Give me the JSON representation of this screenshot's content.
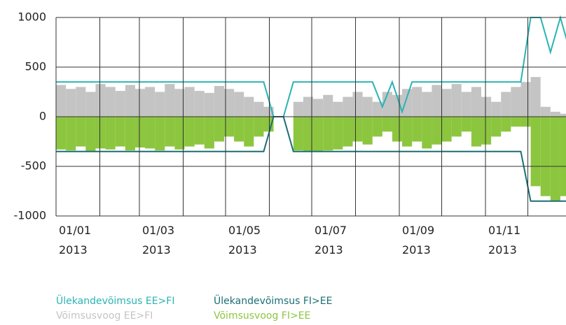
{
  "chart_data": {
    "type": "bar-line",
    "x": [
      "2013-01-01",
      "2013-01-08",
      "2013-01-15",
      "2013-01-22",
      "2013-01-29",
      "2013-02-05",
      "2013-02-12",
      "2013-02-19",
      "2013-02-26",
      "2013-03-05",
      "2013-03-12",
      "2013-03-19",
      "2013-03-26",
      "2013-04-02",
      "2013-04-09",
      "2013-04-16",
      "2013-04-23",
      "2013-04-30",
      "2013-05-07",
      "2013-05-14",
      "2013-05-21",
      "2013-05-28",
      "2013-06-04",
      "2013-06-11",
      "2013-06-18",
      "2013-06-25",
      "2013-07-02",
      "2013-07-09",
      "2013-07-16",
      "2013-07-23",
      "2013-07-30",
      "2013-08-06",
      "2013-08-13",
      "2013-08-20",
      "2013-08-27",
      "2013-09-03",
      "2013-09-10",
      "2013-09-17",
      "2013-09-24",
      "2013-10-01",
      "2013-10-08",
      "2013-10-15",
      "2013-10-22",
      "2013-10-29",
      "2013-11-05",
      "2013-11-12",
      "2013-11-19",
      "2013-11-26",
      "2013-12-03",
      "2013-12-10",
      "2013-12-17",
      "2013-12-24",
      "2013-12-31"
    ],
    "series": [
      {
        "name": "Ülekandevõimsus EE>FI",
        "color": "#2bb3b3",
        "kind": "line",
        "values": [
          350,
          350,
          350,
          350,
          350,
          350,
          350,
          350,
          350,
          350,
          350,
          350,
          350,
          350,
          350,
          350,
          350,
          350,
          350,
          350,
          350,
          350,
          0,
          0,
          350,
          350,
          350,
          350,
          350,
          350,
          350,
          350,
          350,
          100,
          350,
          50,
          350,
          350,
          350,
          350,
          350,
          350,
          350,
          350,
          350,
          350,
          350,
          350,
          1000,
          1000,
          650,
          1000,
          650
        ]
      },
      {
        "name": "Ülekandevõimsus FI>EE",
        "color": "#1b6f74",
        "kind": "line",
        "values": [
          -350,
          -350,
          -350,
          -350,
          -350,
          -350,
          -350,
          -350,
          -350,
          -350,
          -350,
          -350,
          -350,
          -350,
          -350,
          -350,
          -350,
          -350,
          -350,
          -350,
          -350,
          -350,
          0,
          0,
          -350,
          -350,
          -350,
          -350,
          -350,
          -350,
          -350,
          -350,
          -350,
          -350,
          -350,
          -350,
          -350,
          -350,
          -350,
          -350,
          -350,
          -350,
          -350,
          -350,
          -350,
          -350,
          -350,
          -350,
          -850,
          -850,
          -850,
          -850,
          -850
        ]
      },
      {
        "name": "Võimsusvoog EE>FI",
        "color": "#c4c4c4",
        "kind": "bar",
        "values": [
          320,
          280,
          300,
          250,
          330,
          300,
          260,
          320,
          280,
          300,
          250,
          330,
          280,
          300,
          260,
          240,
          310,
          280,
          250,
          200,
          150,
          100,
          0,
          0,
          150,
          200,
          180,
          220,
          150,
          200,
          250,
          200,
          150,
          250,
          220,
          280,
          300,
          250,
          320,
          280,
          330,
          250,
          300,
          200,
          150,
          250,
          300,
          350,
          400,
          100,
          50,
          30,
          40
        ]
      },
      {
        "name": "Võimsusvoog FI>EE",
        "color": "#8cc63f",
        "kind": "bar",
        "values": [
          -330,
          -340,
          -300,
          -350,
          -320,
          -330,
          -300,
          -340,
          -310,
          -320,
          -340,
          -300,
          -330,
          -300,
          -280,
          -320,
          -250,
          -200,
          -250,
          -300,
          -200,
          -150,
          0,
          0,
          -340,
          -350,
          -350,
          -340,
          -330,
          -300,
          -250,
          -280,
          -200,
          -150,
          -250,
          -300,
          -250,
          -320,
          -280,
          -250,
          -200,
          -150,
          -300,
          -280,
          -200,
          -150,
          -100,
          -100,
          -700,
          -800,
          -850,
          -800,
          -750
        ]
      }
    ],
    "xlim": [
      "2013-01-01",
      "2013-12-28"
    ],
    "xticks": [
      {
        "value": "2013-01-01",
        "label": "01/01 2013"
      },
      {
        "value": "2013-02-01",
        "label": null
      },
      {
        "value": "2013-03-01",
        "label": "01/03 2013"
      },
      {
        "value": "2013-04-01",
        "label": null
      },
      {
        "value": "2013-05-01",
        "label": "01/05 2013"
      },
      {
        "value": "2013-06-01",
        "label": null
      },
      {
        "value": "2013-07-01",
        "label": "01/07 2013"
      },
      {
        "value": "2013-08-01",
        "label": null
      },
      {
        "value": "2013-09-01",
        "label": "01/09 2013"
      },
      {
        "value": "2013-10-01",
        "label": null
      },
      {
        "value": "2013-11-01",
        "label": "01/11 2013"
      },
      {
        "value": "2013-12-01",
        "label": null
      }
    ],
    "ylim": [
      -1000,
      1000
    ],
    "yticks": [
      -1000,
      -500,
      0,
      500,
      1000
    ],
    "grid": true
  }
}
